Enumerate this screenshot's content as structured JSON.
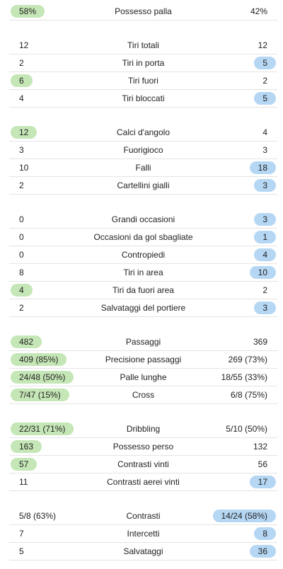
{
  "stat_groups": [
    [
      {
        "label": "Possesso palla",
        "home": "58%",
        "away": "42%",
        "leader": "home"
      }
    ],
    [
      {
        "label": "Tiri totali",
        "home": "12",
        "away": "12",
        "leader": "none"
      },
      {
        "label": "Tiri in porta",
        "home": "2",
        "away": "5",
        "leader": "away"
      },
      {
        "label": "Tiri fuori",
        "home": "6",
        "away": "2",
        "leader": "home"
      },
      {
        "label": "Tiri bloccati",
        "home": "4",
        "away": "5",
        "leader": "away"
      }
    ],
    [
      {
        "label": "Calci d'angolo",
        "home": "12",
        "away": "4",
        "leader": "home"
      },
      {
        "label": "Fuorigioco",
        "home": "3",
        "away": "3",
        "leader": "none"
      },
      {
        "label": "Falli",
        "home": "10",
        "away": "18",
        "leader": "away"
      },
      {
        "label": "Cartellini gialli",
        "home": "2",
        "away": "3",
        "leader": "away"
      }
    ],
    [
      {
        "label": "Grandi occasioni",
        "home": "0",
        "away": "3",
        "leader": "away"
      },
      {
        "label": "Occasioni da gol sbagliate",
        "home": "0",
        "away": "1",
        "leader": "away"
      },
      {
        "label": "Contropiedi",
        "home": "0",
        "away": "4",
        "leader": "away"
      },
      {
        "label": "Tiri in area",
        "home": "8",
        "away": "10",
        "leader": "away"
      },
      {
        "label": "Tiri da fuori area",
        "home": "4",
        "away": "2",
        "leader": "home"
      },
      {
        "label": "Salvataggi del portiere",
        "home": "2",
        "away": "3",
        "leader": "away"
      }
    ],
    [
      {
        "label": "Passaggi",
        "home": "482",
        "away": "369",
        "leader": "home"
      },
      {
        "label": "Precisione passaggi",
        "home": "409 (85%)",
        "away": "269 (73%)",
        "leader": "home"
      },
      {
        "label": "Palle lunghe",
        "home": "24/48 (50%)",
        "away": "18/55 (33%)",
        "leader": "home"
      },
      {
        "label": "Cross",
        "home": "7/47 (15%)",
        "away": "6/8 (75%)",
        "leader": "home"
      }
    ],
    [
      {
        "label": "Dribbling",
        "home": "22/31 (71%)",
        "away": "5/10 (50%)",
        "leader": "home"
      },
      {
        "label": "Possesso perso",
        "home": "163",
        "away": "132",
        "leader": "home"
      },
      {
        "label": "Contrasti vinti",
        "home": "57",
        "away": "56",
        "leader": "home"
      },
      {
        "label": "Contrasti aerei vinti",
        "home": "11",
        "away": "17",
        "leader": "away"
      }
    ],
    [
      {
        "label": "Contrasti",
        "home": "5/8 (63%)",
        "away": "14/24 (58%)",
        "leader": "away"
      },
      {
        "label": "Intercetti",
        "home": "7",
        "away": "8",
        "leader": "away"
      },
      {
        "label": "Salvataggi",
        "home": "5",
        "away": "36",
        "leader": "away"
      }
    ]
  ],
  "colors": {
    "home_highlight": "#c5e6b6",
    "away_highlight": "#b5d7f4",
    "divider": "#e4e4e4",
    "text": "#222222"
  }
}
